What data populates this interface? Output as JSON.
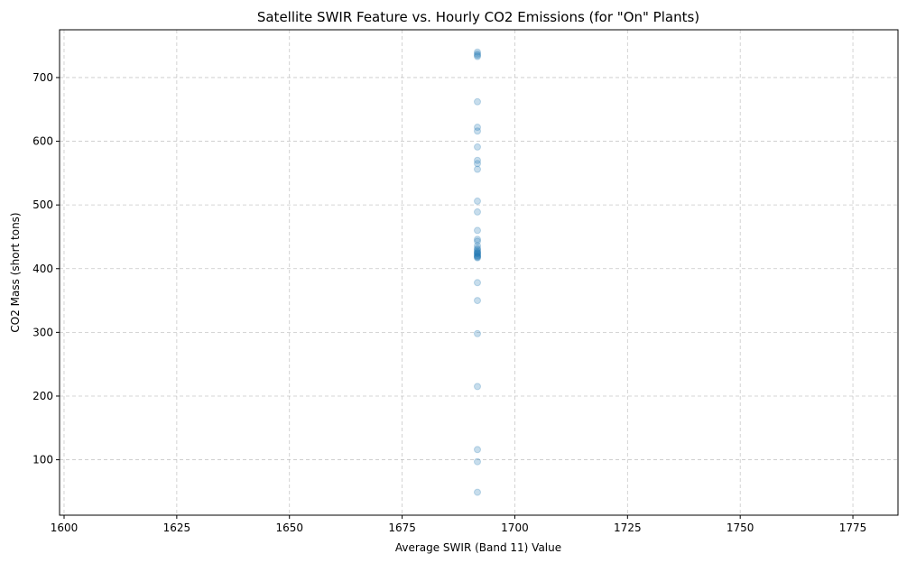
{
  "chart_data": {
    "type": "scatter",
    "title": "Satellite SWIR Feature vs. Hourly CO2 Emissions (for \"On\" Plants)",
    "xlabel": "Average SWIR (Band 11) Value",
    "ylabel": "CO2 Mass (short tons)",
    "xlim": [
      1599,
      1785
    ],
    "ylim": [
      13,
      775
    ],
    "xticks": [
      1600,
      1625,
      1650,
      1675,
      1700,
      1725,
      1750,
      1775
    ],
    "yticks": [
      100,
      200,
      300,
      400,
      500,
      600,
      700
    ],
    "grid": true,
    "grid_style": "dashed",
    "point_color": "#1f77b4",
    "point_alpha": 0.25,
    "x": [
      1691.7,
      1691.7,
      1691.7,
      1691.7,
      1691.7,
      1691.7,
      1691.7,
      1691.7,
      1691.7,
      1691.7,
      1691.7,
      1691.7,
      1691.7,
      1691.7,
      1691.7,
      1691.7,
      1691.7,
      1691.7,
      1691.7,
      1691.7,
      1691.7,
      1691.7,
      1691.7,
      1691.7,
      1691.7,
      1691.7,
      1691.7,
      1691.7,
      1691.7,
      1691.7,
      1691.7,
      1691.7,
      1691.7,
      1691.7,
      1691.7,
      1691.7
    ],
    "y": [
      740,
      737,
      735,
      733,
      662,
      622,
      616,
      591,
      570,
      565,
      556,
      506,
      489,
      460,
      446,
      443,
      436,
      432,
      430,
      428,
      426,
      424,
      423,
      421,
      420,
      419,
      418,
      417,
      378,
      350,
      298,
      215,
      116,
      97,
      49,
      425
    ]
  }
}
